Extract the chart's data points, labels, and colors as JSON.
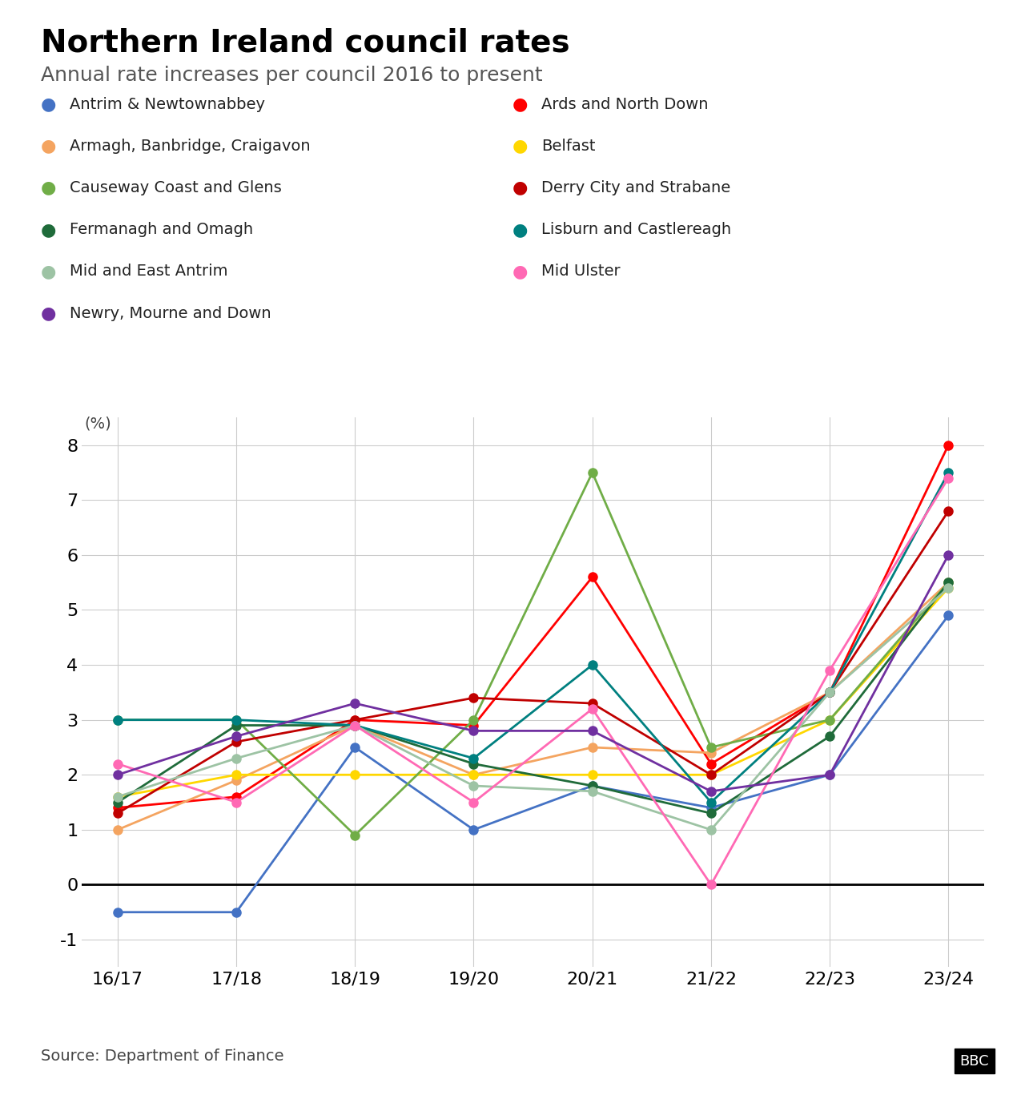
{
  "title": "Northern Ireland council rates",
  "subtitle": "Annual rate increases per council 2016 to present",
  "source": "Source: Department of Finance",
  "x_labels": [
    "16/17",
    "17/18",
    "18/19",
    "19/20",
    "20/21",
    "21/22",
    "22/23",
    "23/24"
  ],
  "ylim": [
    -1.5,
    8.5
  ],
  "yticks": [
    -1,
    0,
    1,
    2,
    3,
    4,
    5,
    6,
    7,
    8
  ],
  "ylabel": "(%)",
  "series": [
    {
      "name": "Antrim & Newtownabbey",
      "color": "#4472C4",
      "values": [
        -0.5,
        -0.5,
        2.5,
        1.0,
        1.8,
        1.4,
        2.0,
        4.9
      ]
    },
    {
      "name": "Ards and North Down",
      "color": "#FF0000",
      "values": [
        1.4,
        1.6,
        3.0,
        2.9,
        5.6,
        2.2,
        3.5,
        8.0
      ]
    },
    {
      "name": "Armagh, Banbridge, Craigavon",
      "color": "#F4A460",
      "values": [
        1.0,
        1.9,
        2.9,
        2.0,
        2.5,
        2.4,
        3.5,
        5.5
      ]
    },
    {
      "name": "Belfast",
      "color": "#FFD700",
      "values": [
        1.6,
        2.0,
        2.0,
        2.0,
        2.0,
        2.0,
        3.0,
        5.4
      ]
    },
    {
      "name": "Causeway Coast and Glens",
      "color": "#70AD47",
      "values": [
        3.0,
        3.0,
        0.9,
        3.0,
        7.5,
        2.5,
        3.0,
        5.5
      ]
    },
    {
      "name": "Derry City and Strabane",
      "color": "#C00000",
      "values": [
        1.3,
        2.6,
        3.0,
        3.4,
        3.3,
        2.0,
        3.5,
        6.8
      ]
    },
    {
      "name": "Fermanagh and Omagh",
      "color": "#1F6B3A",
      "values": [
        1.5,
        2.9,
        2.9,
        2.2,
        1.8,
        1.3,
        2.7,
        5.5
      ]
    },
    {
      "name": "Lisburn and Castlereagh",
      "color": "#008080",
      "values": [
        3.0,
        3.0,
        2.9,
        2.3,
        4.0,
        1.5,
        3.5,
        7.5
      ]
    },
    {
      "name": "Mid and East Antrim",
      "color": "#9DC3A4",
      "values": [
        1.6,
        2.3,
        2.9,
        1.8,
        1.7,
        1.0,
        3.5,
        5.4
      ]
    },
    {
      "name": "Mid Ulster",
      "color": "#FF69B4",
      "values": [
        2.2,
        1.5,
        2.9,
        1.5,
        3.2,
        0.0,
        3.9,
        7.4
      ]
    },
    {
      "name": "Newry, Mourne and Down",
      "color": "#7030A0",
      "values": [
        2.0,
        2.7,
        3.3,
        2.8,
        2.8,
        1.7,
        2.0,
        6.0
      ]
    }
  ],
  "background_color": "#FFFFFF",
  "grid_color": "#CCCCCC",
  "zero_line_color": "#000000"
}
